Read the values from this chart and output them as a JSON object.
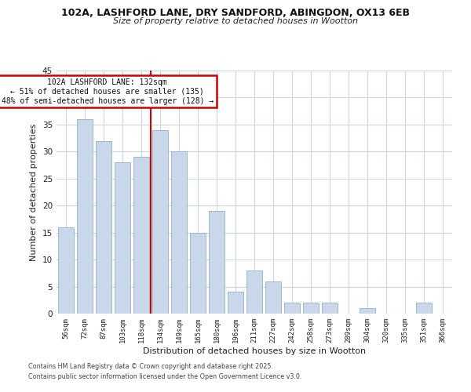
{
  "title1": "102A, LASHFORD LANE, DRY SANDFORD, ABINGDON, OX13 6EB",
  "title2": "Size of property relative to detached houses in Wootton",
  "xlabel": "Distribution of detached houses by size in Wootton",
  "ylabel": "Number of detached properties",
  "bar_labels": [
    "56sqm",
    "72sqm",
    "87sqm",
    "103sqm",
    "118sqm",
    "134sqm",
    "149sqm",
    "165sqm",
    "180sqm",
    "196sqm",
    "211sqm",
    "227sqm",
    "242sqm",
    "258sqm",
    "273sqm",
    "289sqm",
    "304sqm",
    "320sqm",
    "335sqm",
    "351sqm",
    "366sqm"
  ],
  "bar_values": [
    16,
    36,
    32,
    28,
    29,
    34,
    30,
    15,
    19,
    4,
    8,
    6,
    2,
    2,
    2,
    0,
    1,
    0,
    0,
    2,
    0
  ],
  "bar_color": "#c8d8ea",
  "bar_edge_color": "#a0b8cc",
  "grid_color": "#ccd6e0",
  "annotation_title": "102A LASHFORD LANE: 132sqm",
  "annotation_line1": "← 51% of detached houses are smaller (135)",
  "annotation_line2": "48% of semi-detached houses are larger (128) →",
  "vline_color": "#cc0000",
  "annotation_box_edge": "#cc0000",
  "ylim": [
    0,
    45
  ],
  "yticks": [
    0,
    5,
    10,
    15,
    20,
    25,
    30,
    35,
    40,
    45
  ],
  "footer1": "Contains HM Land Registry data © Crown copyright and database right 2025.",
  "footer2": "Contains public sector information licensed under the Open Government Licence v3.0.",
  "bg_color": "#ffffff"
}
